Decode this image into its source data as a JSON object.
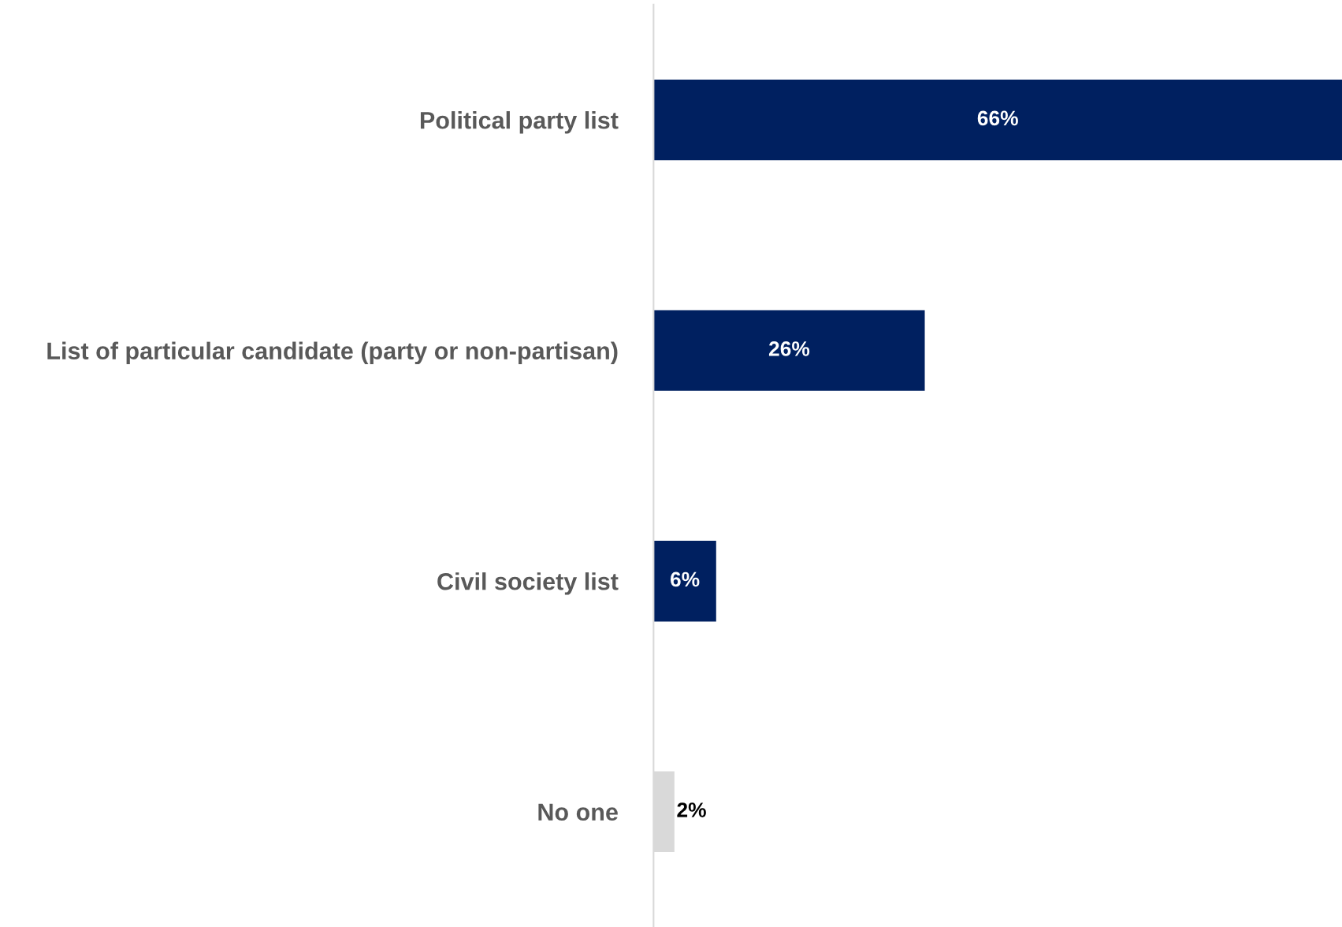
{
  "chart_data": {
    "type": "bar",
    "orientation": "horizontal",
    "categories": [
      "Political party list",
      "List of particular candidate (party or non-partisan)",
      "Civil society list",
      "No one"
    ],
    "values": [
      66,
      26,
      6,
      2
    ],
    "colors": [
      "#002060",
      "#002060",
      "#002060",
      "#d9d9d9"
    ],
    "value_labels": [
      "66%",
      "26%",
      "6%",
      "2%"
    ],
    "grid": false,
    "legend": false
  }
}
